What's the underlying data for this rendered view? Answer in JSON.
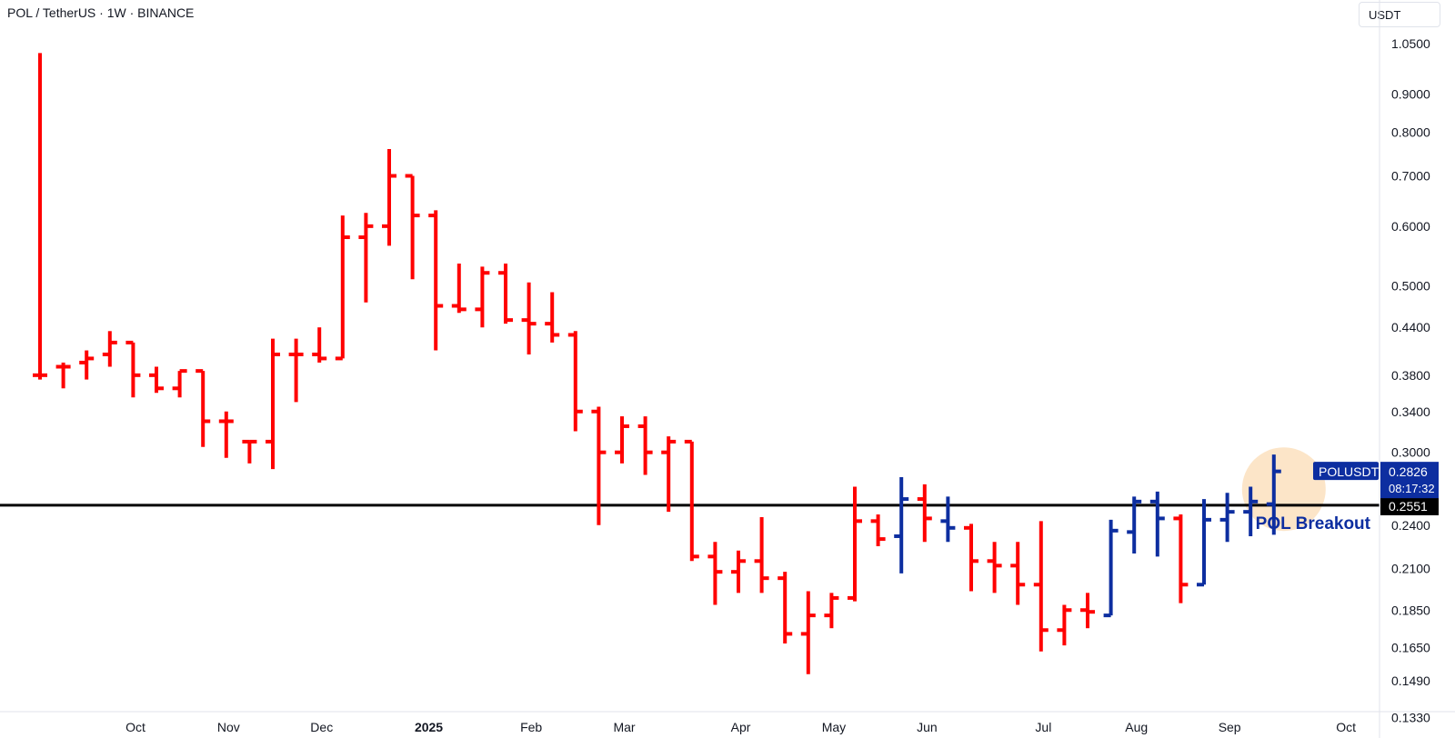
{
  "chart_data": {
    "type": "ohlc-bar",
    "title": "POL / TetherUS · 1W · BINANCE",
    "currency_button": "USDT",
    "y_scale": "log",
    "y_range": [
      0.125,
      1.2
    ],
    "y_ticks": [
      "1.0500",
      "0.9000",
      "0.8000",
      "0.7000",
      "0.6000",
      "0.5000",
      "0.4400",
      "0.3800",
      "0.3400",
      "0.3000",
      "0.2400",
      "0.2100",
      "0.1850",
      "0.1650",
      "0.1490",
      "0.1330"
    ],
    "x_ticks": [
      {
        "label": "Oct",
        "bar": 4.1,
        "bold": false
      },
      {
        "label": "Nov",
        "bar": 8.1,
        "bold": false
      },
      {
        "label": "Dec",
        "bar": 12.1,
        "bold": false
      },
      {
        "label": "2025",
        "bar": 16.7,
        "bold": true
      },
      {
        "label": "Feb",
        "bar": 21.1,
        "bold": false
      },
      {
        "label": "Mar",
        "bar": 25.1,
        "bold": false
      },
      {
        "label": "Apr",
        "bar": 30.1,
        "bold": false
      },
      {
        "label": "May",
        "bar": 34.1,
        "bold": false
      },
      {
        "label": "Jun",
        "bar": 38.1,
        "bold": false
      },
      {
        "label": "Jul",
        "bar": 43.1,
        "bold": false
      },
      {
        "label": "Aug",
        "bar": 47.1,
        "bold": false
      },
      {
        "label": "Sep",
        "bar": 51.1,
        "bold": false
      },
      {
        "label": "Oct",
        "bar": 56.1,
        "bold": false
      }
    ],
    "colors": {
      "down": "#ff0000",
      "up": "#0d2ea0",
      "level_line": "#000000",
      "highlight": "#f9cf9b"
    },
    "level": {
      "value": 0.2551,
      "label": "0.2551"
    },
    "annotation": {
      "text": "POL Breakout",
      "color": "#0d2ea0"
    },
    "last_price": {
      "symbol": "POLUSDT",
      "value": "0.2826",
      "countdown": "08:17:32"
    },
    "series": [
      {
        "values": [
          [
            0.38,
            1.02,
            0.375,
            0.38,
            "down"
          ],
          [
            0.39,
            0.395,
            0.365,
            0.39,
            "down"
          ],
          [
            0.395,
            0.41,
            0.375,
            0.4,
            "down"
          ],
          [
            0.405,
            0.435,
            0.39,
            0.42,
            "down"
          ],
          [
            0.42,
            0.42,
            0.355,
            0.38,
            "down"
          ],
          [
            0.38,
            0.39,
            0.36,
            0.365,
            "down"
          ],
          [
            0.365,
            0.385,
            0.355,
            0.385,
            "down"
          ],
          [
            0.385,
            0.385,
            0.305,
            0.33,
            "down"
          ],
          [
            0.33,
            0.34,
            0.295,
            0.33,
            "down"
          ],
          [
            0.31,
            0.31,
            0.29,
            0.31,
            "down"
          ],
          [
            0.31,
            0.425,
            0.285,
            0.405,
            "down"
          ],
          [
            0.405,
            0.425,
            0.35,
            0.405,
            "down"
          ],
          [
            0.405,
            0.44,
            0.395,
            0.4,
            "down"
          ],
          [
            0.4,
            0.62,
            0.4,
            0.58,
            "down"
          ],
          [
            0.58,
            0.625,
            0.475,
            0.6,
            "down"
          ],
          [
            0.6,
            0.76,
            0.565,
            0.7,
            "down"
          ],
          [
            0.7,
            0.7,
            0.51,
            0.62,
            "down"
          ],
          [
            0.62,
            0.63,
            0.41,
            0.47,
            "down"
          ],
          [
            0.47,
            0.535,
            0.46,
            0.465,
            "down"
          ],
          [
            0.465,
            0.53,
            0.44,
            0.52,
            "down"
          ],
          [
            0.52,
            0.535,
            0.445,
            0.45,
            "down"
          ],
          [
            0.45,
            0.505,
            0.405,
            0.445,
            "down"
          ],
          [
            0.445,
            0.49,
            0.42,
            0.43,
            "down"
          ],
          [
            0.43,
            0.435,
            0.32,
            0.34,
            "down"
          ],
          [
            0.34,
            0.345,
            0.24,
            0.3,
            "down"
          ],
          [
            0.3,
            0.335,
            0.29,
            0.325,
            "down"
          ],
          [
            0.325,
            0.335,
            0.28,
            0.3,
            "down"
          ],
          [
            0.3,
            0.315,
            0.25,
            0.31,
            "down"
          ],
          [
            0.31,
            0.31,
            0.215,
            0.218,
            "down"
          ],
          [
            0.218,
            0.228,
            0.188,
            0.208,
            "down"
          ],
          [
            0.208,
            0.222,
            0.195,
            0.215,
            "down"
          ],
          [
            0.215,
            0.246,
            0.195,
            0.204,
            "down"
          ],
          [
            0.204,
            0.208,
            0.167,
            0.172,
            "down"
          ],
          [
            0.172,
            0.196,
            0.152,
            0.182,
            "down"
          ],
          [
            0.182,
            0.195,
            0.175,
            0.192,
            "down"
          ],
          [
            0.192,
            0.27,
            0.19,
            0.243,
            "down"
          ],
          [
            0.243,
            0.248,
            0.225,
            0.23,
            "down"
          ],
          [
            0.232,
            0.278,
            0.207,
            0.26,
            "up"
          ],
          [
            0.26,
            0.272,
            0.228,
            0.245,
            "down"
          ],
          [
            0.243,
            0.262,
            0.228,
            0.238,
            "up"
          ],
          [
            0.238,
            0.241,
            0.196,
            0.215,
            "down"
          ],
          [
            0.215,
            0.228,
            0.195,
            0.212,
            "down"
          ],
          [
            0.212,
            0.228,
            0.188,
            0.2,
            "down"
          ],
          [
            0.2,
            0.243,
            0.163,
            0.174,
            "down"
          ],
          [
            0.174,
            0.188,
            0.166,
            0.185,
            "down"
          ],
          [
            0.185,
            0.195,
            0.175,
            0.184,
            "down"
          ],
          [
            0.182,
            0.244,
            0.182,
            0.236,
            "up"
          ],
          [
            0.235,
            0.262,
            0.22,
            0.258,
            "up"
          ],
          [
            0.258,
            0.266,
            0.218,
            0.245,
            "up"
          ],
          [
            0.245,
            0.248,
            0.189,
            0.2,
            "down"
          ],
          [
            0.2,
            0.26,
            0.2,
            0.244,
            "up"
          ],
          [
            0.244,
            0.265,
            0.228,
            0.25,
            "up"
          ],
          [
            0.25,
            0.27,
            0.232,
            0.258,
            "up"
          ],
          [
            0.256,
            0.298,
            0.233,
            0.283,
            "up"
          ]
        ]
      }
    ]
  }
}
